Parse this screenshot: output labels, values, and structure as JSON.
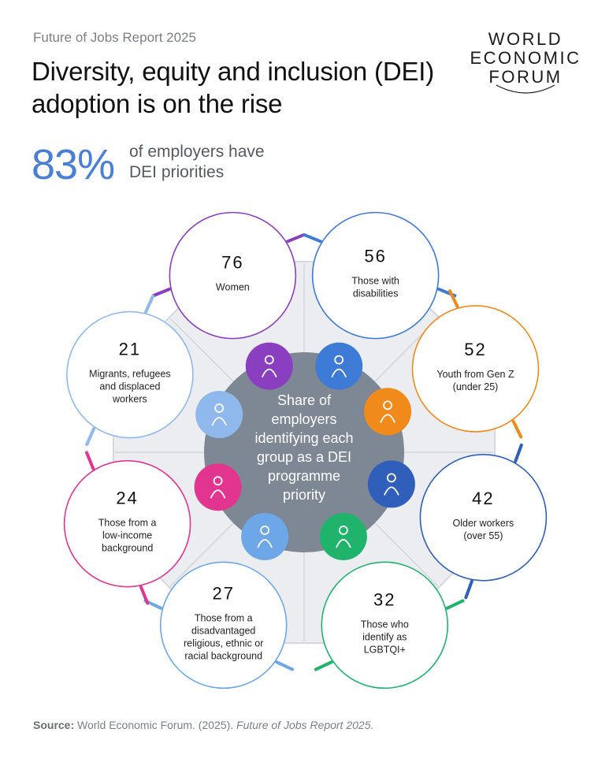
{
  "header": {
    "eyebrow": "Future of Jobs Report 2025",
    "title": "Diversity, equity and inclusion (DEI) adoption is on the rise"
  },
  "logo": {
    "lines": [
      "WORLD",
      "ECONOMIC",
      "FORUM"
    ]
  },
  "headline_stat": {
    "value": "83%",
    "label_line1": "of employers have",
    "label_line2": "DEI priorities"
  },
  "chart_data": {
    "type": "radial-bubble",
    "center_label": [
      "Share of",
      "employers",
      "identifying each",
      "group as a DEI",
      "programme",
      "priority"
    ],
    "unit": "% of employers",
    "groups": [
      {
        "value": 76,
        "label": [
          "Women"
        ],
        "color": "#8a3fc1",
        "icon": "woman-icon"
      },
      {
        "value": 56,
        "label": [
          "Those with",
          "disabilities"
        ],
        "color": "#3e7bd6",
        "icon": "wheelchair-icon"
      },
      {
        "value": 52,
        "label": [
          "Youth from Gen Z",
          "(under 25)"
        ],
        "color": "#f08a1a",
        "icon": "group-of-people-icon"
      },
      {
        "value": 42,
        "label": [
          "Older workers",
          "(over 55)"
        ],
        "color": "#2f5fba",
        "icon": "older-workers-icon"
      },
      {
        "value": 32,
        "label": [
          "Those who",
          "identify as",
          "LGBTQI+"
        ],
        "color": "#1fb36b",
        "icon": "flag-icon"
      },
      {
        "value": 27,
        "label": [
          "Those from a",
          "disadvantaged",
          "religious, ethnic or",
          "racial background"
        ],
        "color": "#6ea7e8",
        "icon": "hands-icon"
      },
      {
        "value": 24,
        "label": [
          "Those from a",
          "low-income",
          "background"
        ],
        "color": "#e2358f",
        "icon": "low-income-icon"
      },
      {
        "value": 21,
        "label": [
          "Migrants, refugees",
          "and displaced",
          "workers"
        ],
        "color": "#8fb9ec",
        "icon": "boat-icon"
      }
    ]
  },
  "source": {
    "label": "Source:",
    "text": "World Economic Forum. (2025).",
    "italic": "Future of Jobs Report 2025."
  }
}
